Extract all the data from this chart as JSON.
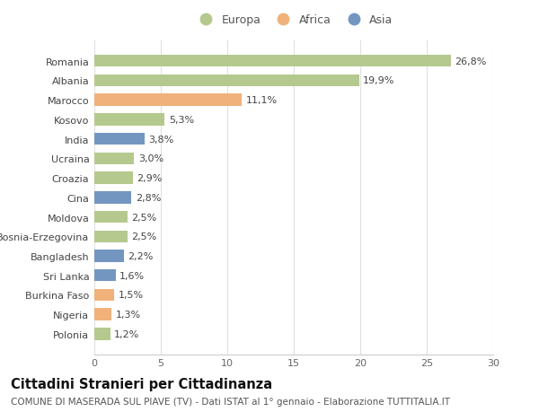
{
  "categories": [
    "Romania",
    "Albania",
    "Marocco",
    "Kosovo",
    "India",
    "Ucraina",
    "Croazia",
    "Cina",
    "Moldova",
    "Bosnia-Erzegovina",
    "Bangladesh",
    "Sri Lanka",
    "Burkina Faso",
    "Nigeria",
    "Polonia"
  ],
  "values": [
    26.8,
    19.9,
    11.1,
    5.3,
    3.8,
    3.0,
    2.9,
    2.8,
    2.5,
    2.5,
    2.2,
    1.6,
    1.5,
    1.3,
    1.2
  ],
  "labels": [
    "26,8%",
    "19,9%",
    "11,1%",
    "5,3%",
    "3,8%",
    "3,0%",
    "2,9%",
    "2,8%",
    "2,5%",
    "2,5%",
    "2,2%",
    "1,6%",
    "1,5%",
    "1,3%",
    "1,2%"
  ],
  "continents": [
    "Europa",
    "Europa",
    "Africa",
    "Europa",
    "Asia",
    "Europa",
    "Europa",
    "Asia",
    "Europa",
    "Europa",
    "Asia",
    "Asia",
    "Africa",
    "Africa",
    "Europa"
  ],
  "colors": {
    "Europa": "#b5c98e",
    "Africa": "#f0b27a",
    "Asia": "#7396c0"
  },
  "title": "Cittadini Stranieri per Cittadinanza",
  "subtitle": "COMUNE DI MASERADA SUL PIAVE (TV) - Dati ISTAT al 1° gennaio - Elaborazione TUTTITALIA.IT",
  "xlim": [
    0,
    30
  ],
  "xticks": [
    0,
    5,
    10,
    15,
    20,
    25,
    30
  ],
  "background_color": "#ffffff",
  "grid_color": "#e0e0e0",
  "bar_height": 0.62,
  "title_fontsize": 10.5,
  "subtitle_fontsize": 7.5,
  "label_fontsize": 8,
  "tick_fontsize": 8,
  "legend_fontsize": 9
}
